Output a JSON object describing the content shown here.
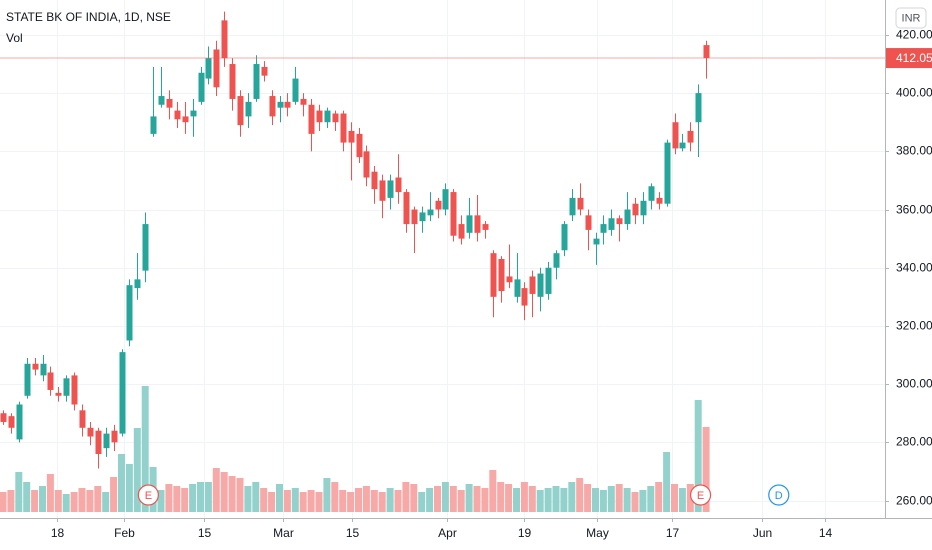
{
  "chart_data": {
    "type": "candlestick",
    "title": "STATE BK OF INDIA, 1D, NSE",
    "volume_label": "Vol",
    "currency": "INR",
    "up_color": "#26a69a",
    "down_color": "#ef5350",
    "up_volume_color": "#93d2cc",
    "down_volume_color": "#f7a9a7",
    "grid": true,
    "open": [
      290,
      289,
      281,
      296,
      307,
      303,
      304,
      297,
      296,
      303,
      291,
      285,
      284,
      278,
      284,
      283,
      315,
      333,
      339,
      386,
      396,
      398,
      394,
      392,
      392,
      397,
      405,
      415,
      425,
      410,
      399,
      392,
      398,
      409,
      399,
      395,
      397,
      397,
      398,
      396,
      394,
      390,
      393,
      393,
      387,
      386,
      380,
      373,
      370,
      364,
      371,
      366,
      360,
      356,
      358,
      363,
      360,
      366,
      355,
      352,
      358,
      355,
      345,
      343,
      337,
      330,
      333,
      337,
      330,
      331,
      340,
      346,
      358,
      364,
      358,
      348,
      352,
      353,
      357,
      355,
      362,
      358,
      363,
      364,
      362,
      390,
      381,
      387,
      390,
      416.5
    ],
    "high": [
      291,
      290,
      294,
      309,
      309,
      310,
      306,
      299,
      303,
      304,
      293,
      287,
      285,
      285,
      286,
      312,
      336,
      345,
      359,
      409,
      409,
      401,
      397,
      397,
      398,
      409,
      416,
      418,
      428,
      412,
      401,
      400,
      413,
      411,
      401,
      399,
      400,
      409,
      400,
      398,
      396,
      395,
      394,
      394,
      390,
      388,
      382,
      375,
      372,
      372,
      379,
      367,
      361,
      361,
      366,
      364,
      369,
      367,
      358,
      364,
      365,
      356,
      346,
      344,
      348,
      345,
      335,
      339,
      340,
      342,
      346,
      356,
      367,
      369,
      360,
      352,
      358,
      360,
      358,
      366,
      364,
      366,
      369,
      366,
      384,
      393,
      386,
      390,
      403,
      418
    ],
    "low": [
      286,
      283,
      280,
      295,
      303,
      301,
      296,
      294,
      294,
      291,
      282,
      279,
      271,
      275,
      277,
      282,
      313,
      329,
      335,
      385,
      395,
      391,
      388,
      386,
      385,
      396,
      403,
      399,
      409,
      394,
      385,
      388,
      397,
      404,
      389,
      390,
      392,
      396,
      392,
      380,
      387,
      388,
      387,
      380,
      370,
      376,
      368,
      362,
      357,
      360,
      362,
      352,
      345,
      352,
      356,
      357,
      358,
      349,
      348,
      350,
      349,
      350,
      323,
      328,
      333,
      328,
      322,
      323,
      325,
      329,
      336,
      344,
      356,
      358,
      346,
      341,
      348,
      351,
      349,
      353,
      355,
      355,
      360,
      360,
      361,
      379,
      380,
      380,
      378,
      405
    ],
    "close": [
      287,
      285,
      293,
      307,
      305,
      307,
      298,
      296,
      302,
      293,
      285,
      282,
      276,
      283,
      280,
      311,
      334,
      336,
      355,
      392,
      399,
      395,
      391,
      390,
      394,
      407,
      412,
      402,
      412,
      398,
      389,
      397,
      410,
      406,
      392,
      397,
      395,
      405,
      396,
      386,
      390,
      394,
      390,
      383,
      383,
      378,
      371,
      367,
      363,
      370,
      366,
      355,
      355,
      359,
      360,
      360,
      367,
      351,
      350,
      358,
      352,
      353,
      330,
      332,
      335,
      336,
      327,
      331,
      338,
      340,
      345,
      355,
      364,
      360,
      353,
      350,
      355,
      357,
      355,
      360,
      358,
      363,
      368,
      362,
      383,
      381,
      383,
      383,
      400,
      412.05
    ],
    "volume": [
      20,
      22,
      40,
      30,
      22,
      26,
      38,
      22,
      18,
      20,
      24,
      22,
      26,
      20,
      35,
      58,
      48,
      84,
      126,
      45,
      22,
      28,
      26,
      24,
      28,
      30,
      30,
      44,
      40,
      36,
      34,
      26,
      30,
      24,
      20,
      28,
      22,
      24,
      20,
      22,
      20,
      34,
      30,
      22,
      20,
      24,
      26,
      22,
      20,
      24,
      22,
      30,
      28,
      20,
      24,
      26,
      30,
      26,
      22,
      28,
      26,
      24,
      42,
      30,
      28,
      24,
      30,
      26,
      22,
      24,
      26,
      24,
      30,
      34,
      28,
      24,
      22,
      26,
      28,
      24,
      20,
      22,
      26,
      30,
      60,
      28,
      24,
      28,
      112,
      85
    ],
    "xticks": [
      {
        "value": 6.8,
        "label": "18"
      },
      {
        "value": 15.3,
        "label": "Feb"
      },
      {
        "value": 25.4,
        "label": "15"
      },
      {
        "value": 35.4,
        "label": "Mar"
      },
      {
        "value": 44.2,
        "label": "15"
      },
      {
        "value": 56.2,
        "label": "Apr"
      },
      {
        "value": 65.9,
        "label": "19"
      },
      {
        "value": 75.2,
        "label": "May"
      },
      {
        "value": 84.7,
        "label": "17"
      },
      {
        "value": 96.1,
        "label": "Jun"
      },
      {
        "value": 104,
        "label": "14"
      }
    ],
    "ylim": [
      254,
      432
    ],
    "yticks": [
      {
        "value": 260,
        "label": "260.00"
      },
      {
        "value": 280,
        "label": "280.00"
      },
      {
        "value": 300,
        "label": "300.00"
      },
      {
        "value": 320,
        "label": "320.00"
      },
      {
        "value": 340,
        "label": "340.00"
      },
      {
        "value": 360,
        "label": "360.00"
      },
      {
        "value": 380,
        "label": "380.00"
      },
      {
        "value": 400,
        "label": "400.00"
      },
      {
        "value": 420,
        "label": "420.00"
      }
    ],
    "markers": [
      {
        "label": "E",
        "index": 18.4,
        "color": "#ef5350"
      },
      {
        "label": "E",
        "index": 88.3,
        "color": "#ef5350"
      },
      {
        "label": "D",
        "index": 98.2,
        "color": "#2196f3"
      }
    ]
  }
}
